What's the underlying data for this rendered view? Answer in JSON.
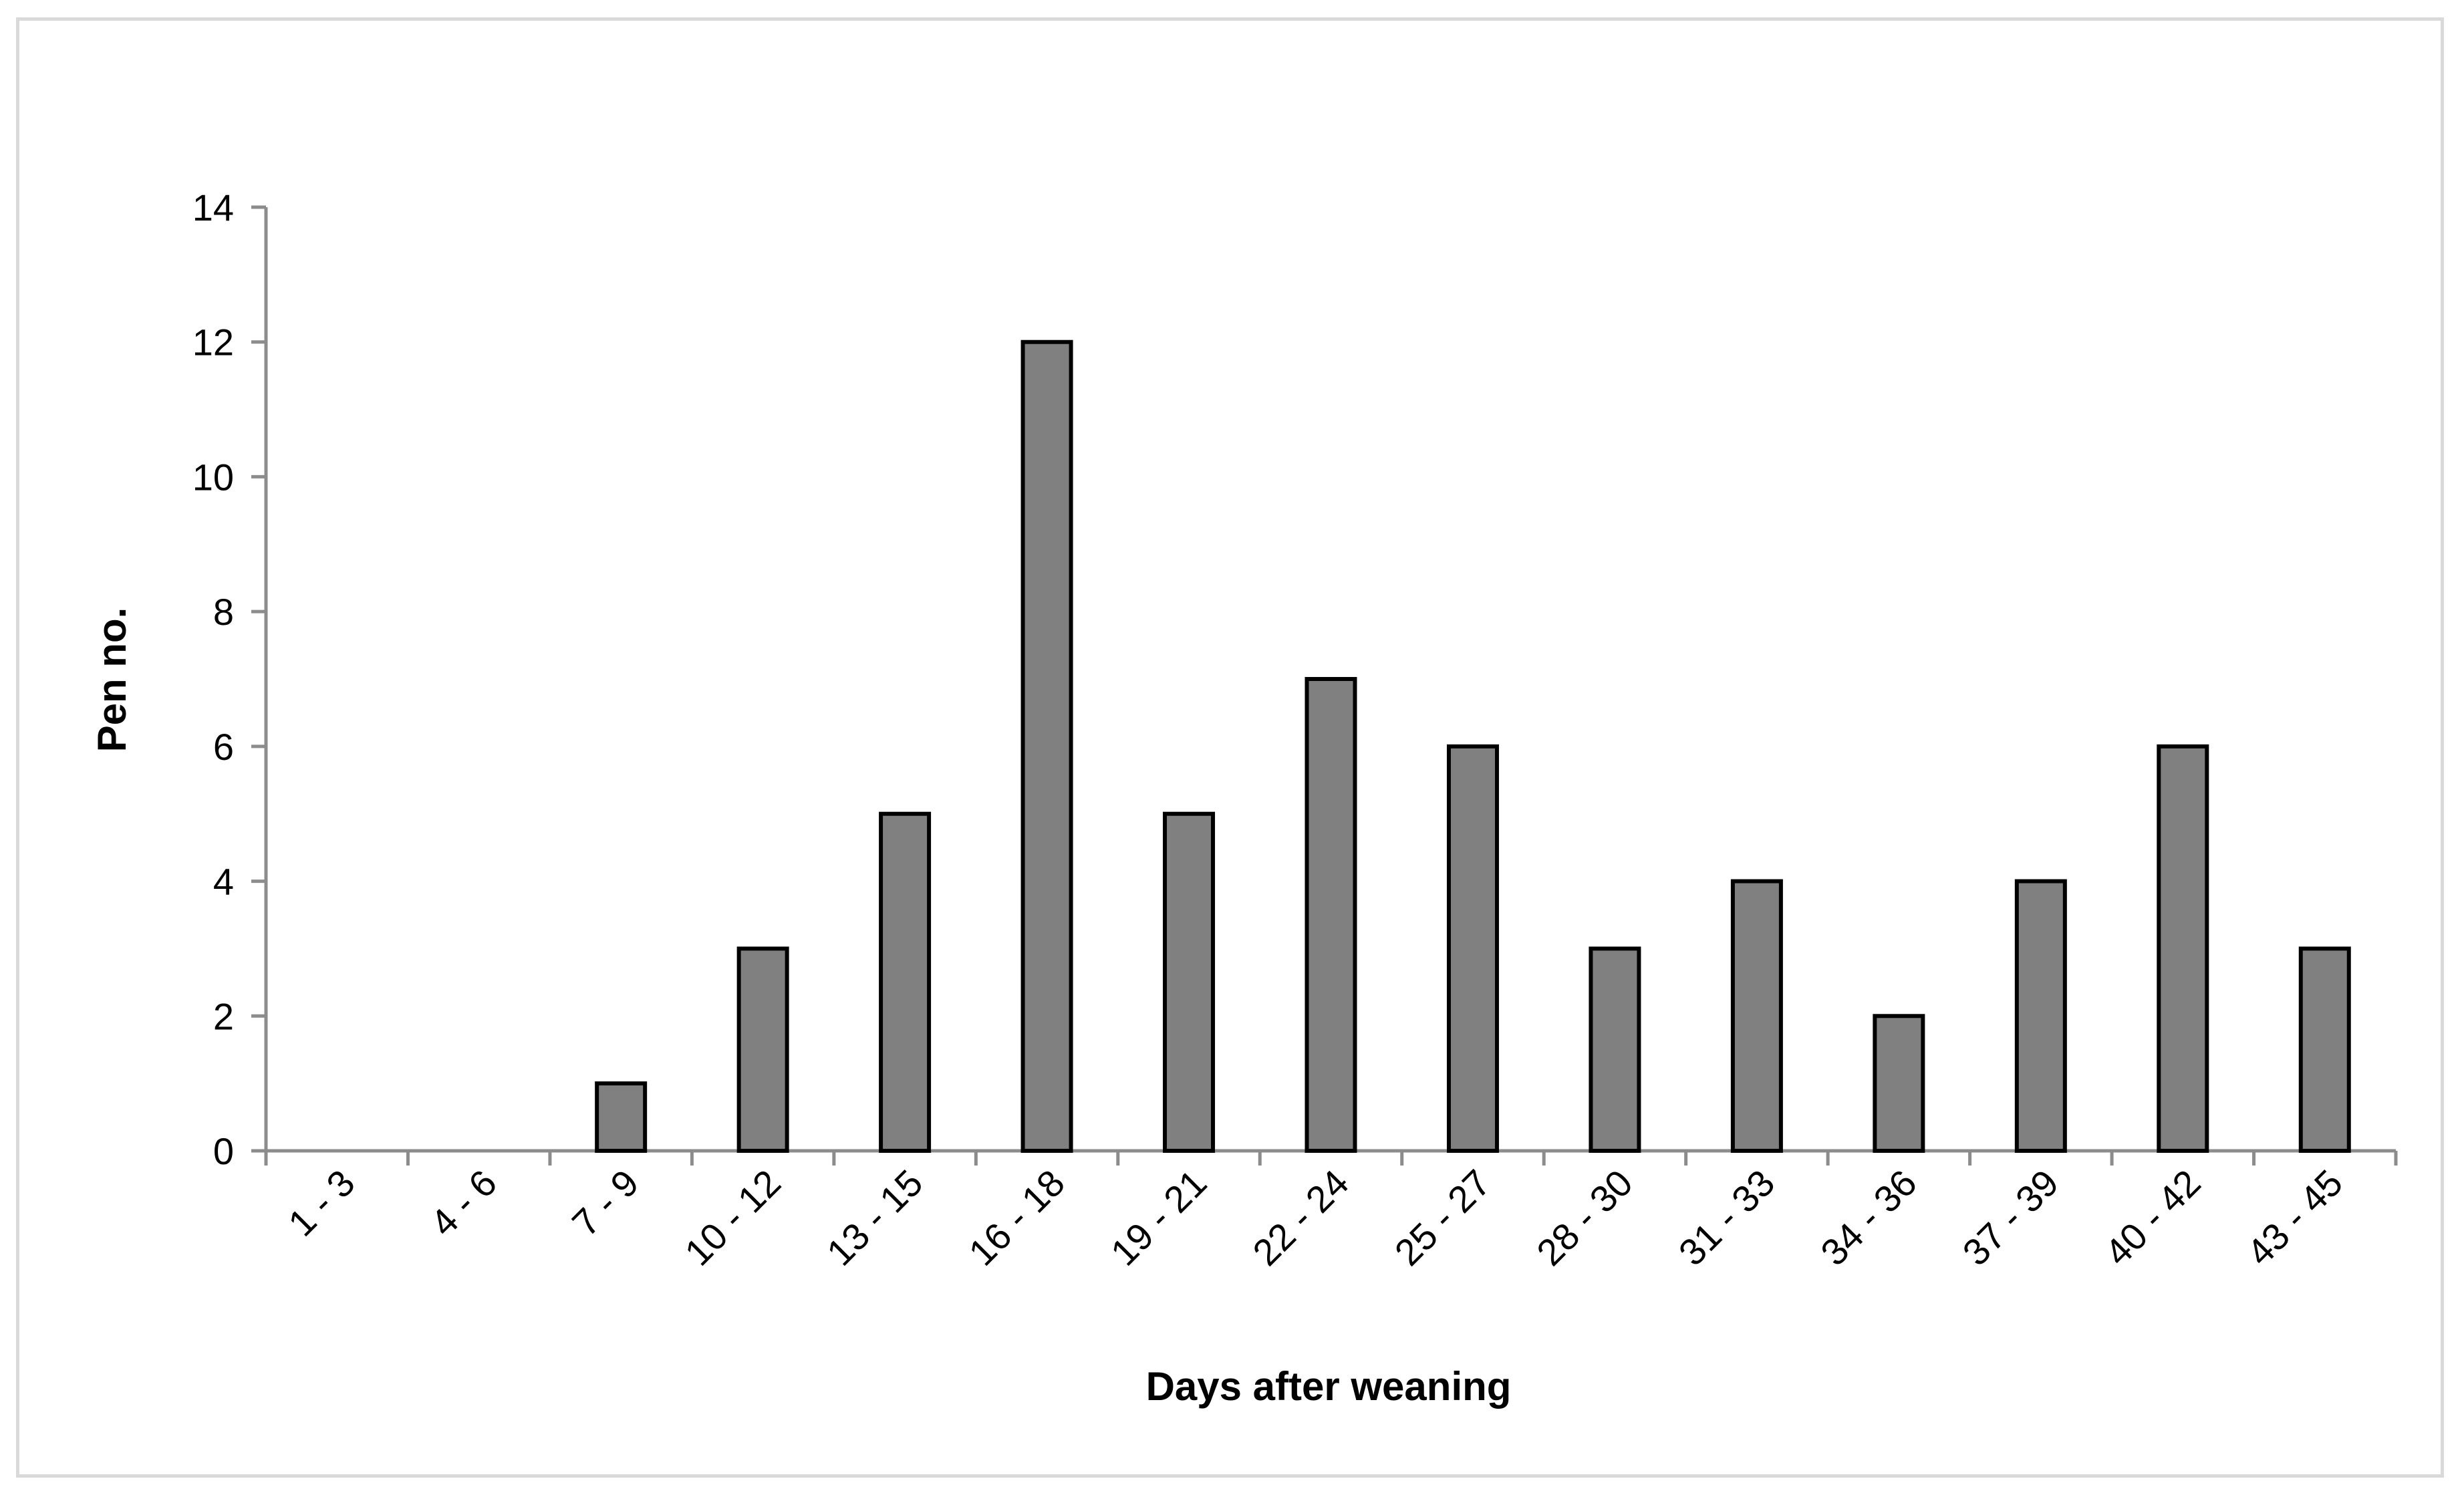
{
  "chart_data": {
    "type": "bar",
    "title": "",
    "xlabel": "Days after weaning",
    "ylabel": "Pen no.",
    "categories": [
      "1 - 3",
      "4 - 6",
      "7 - 9",
      "10 - 12",
      "13 - 15",
      "16 - 18",
      "19 - 21",
      "22 - 24",
      "25 - 27",
      "28 - 30",
      "31 - 33",
      "34 - 36",
      "37 - 39",
      "40 - 42",
      "43 - 45"
    ],
    "values": [
      0,
      0,
      1,
      3,
      5,
      12,
      5,
      7,
      6,
      3,
      4,
      2,
      4,
      6,
      3
    ],
    "ylim": [
      0,
      14
    ],
    "yticks": [
      "0",
      "2",
      "4",
      "6",
      "8",
      "10",
      "12",
      "14"
    ],
    "grid": false,
    "legend": "none",
    "bar_color": "#808080",
    "bar_edge_color": "#000000"
  }
}
